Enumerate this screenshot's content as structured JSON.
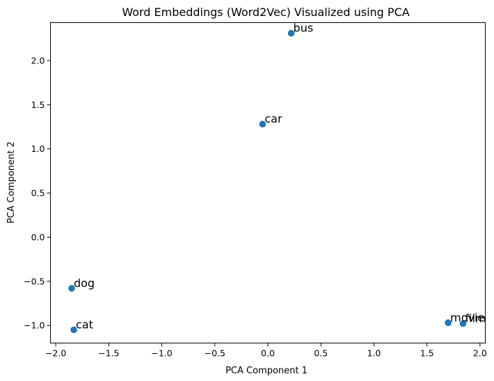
{
  "chart_data": {
    "type": "scatter",
    "title": "Word Embeddings (Word2Vec) Visualized using PCA",
    "xlabel": "PCA Component 1",
    "ylabel": "PCA Component 2",
    "xlim": [
      -2.05,
      2.05
    ],
    "ylim": [
      -1.2,
      2.43
    ],
    "xticks": [
      -2.0,
      -1.5,
      -1.0,
      -0.5,
      0.0,
      0.5,
      1.0,
      1.5,
      2.0
    ],
    "xtick_labels": [
      "−2.0",
      "−1.5",
      "−1.0",
      "−0.5",
      "0.0",
      "0.5",
      "1.0",
      "1.5",
      "2.0"
    ],
    "yticks": [
      -1.0,
      -0.5,
      0.0,
      0.5,
      1.0,
      1.5,
      2.0
    ],
    "ytick_labels": [
      "−1.0",
      "−0.5",
      "0.0",
      "0.5",
      "1.0",
      "1.5",
      "2.0"
    ],
    "grid": false,
    "color": "#1f77b4",
    "points": [
      {
        "label": "bus",
        "x": 0.22,
        "y": 2.31
      },
      {
        "label": "car",
        "x": -0.05,
        "y": 1.28
      },
      {
        "label": "dog",
        "x": -1.85,
        "y": -0.58
      },
      {
        "label": "cat",
        "x": -1.83,
        "y": -1.05
      },
      {
        "label": "movie",
        "x": 1.7,
        "y": -0.97
      },
      {
        "label": "film",
        "x": 1.84,
        "y": -0.98
      }
    ]
  }
}
